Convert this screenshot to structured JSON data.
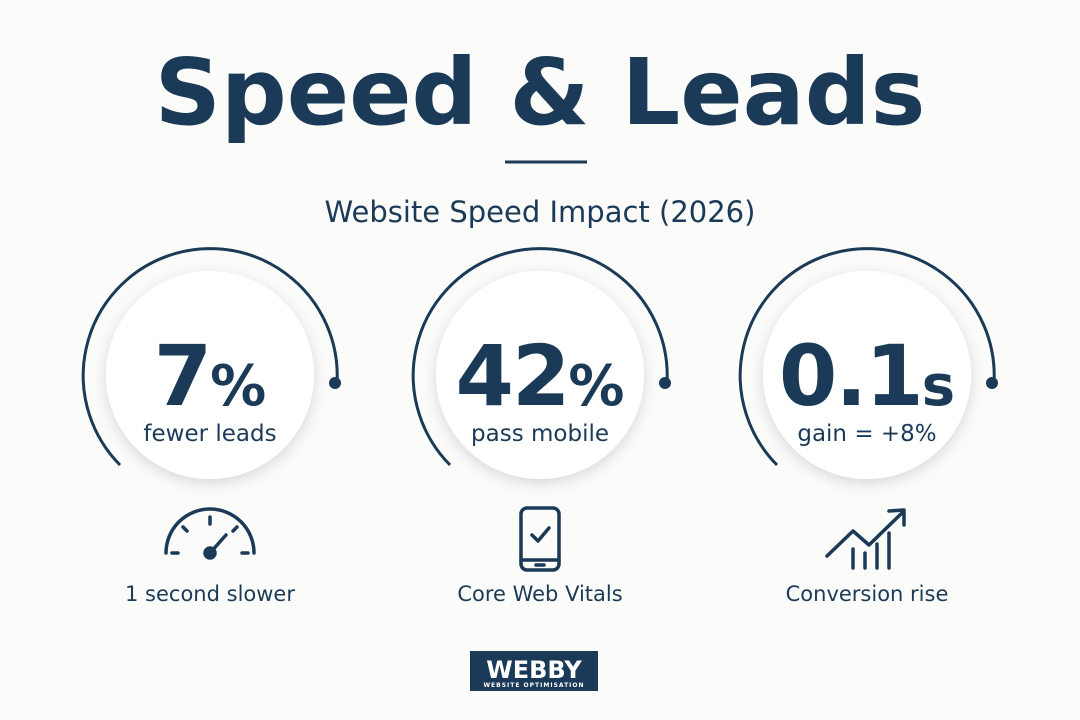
{
  "header": {
    "title": "Speed & Leads",
    "subtitle": "Website Speed Impact (2026)"
  },
  "stats": [
    {
      "number": "7",
      "unit": "%",
      "label": "fewer leads",
      "caption": "1 second slower"
    },
    {
      "number": "42",
      "unit": "%",
      "label": "pass mobile",
      "caption": "Core Web Vitals"
    },
    {
      "number": "0.1",
      "unit": "s",
      "label": "gain = +8%",
      "caption": "Conversion rise"
    }
  ],
  "logo": {
    "name": "WEBBY",
    "tagline": "WEBSITE OPTIMISATION"
  }
}
